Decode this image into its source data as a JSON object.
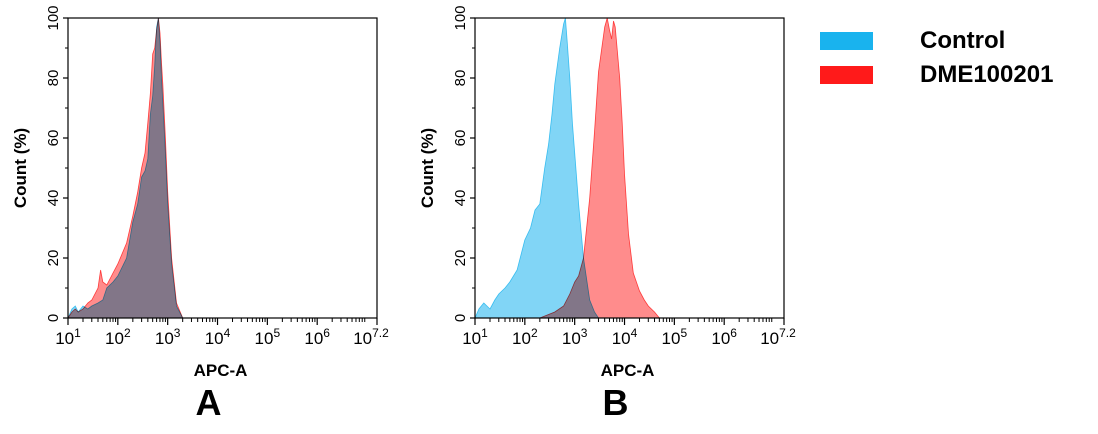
{
  "colors": {
    "control": "#19b3ee",
    "sample": "#ff1a1a",
    "overlap": "#7d8bad",
    "axis": "#000000"
  },
  "legend": {
    "placement": "top-right",
    "items": [
      {
        "label": "Control",
        "color": "#19b3ee"
      },
      {
        "label": "DME100201",
        "color": "#ff1a1a"
      }
    ]
  },
  "chart_data": [
    {
      "type": "area",
      "panel_label": "A",
      "xlabel": "APC-A",
      "ylabel": "Count  (%)",
      "xscale": "log",
      "xlim": [
        10,
        15848932
      ],
      "ylim": [
        0,
        100
      ],
      "x_ticks": [
        {
          "base": "10",
          "exp": "1"
        },
        {
          "base": "10",
          "exp": "2"
        },
        {
          "base": "10",
          "exp": "3"
        },
        {
          "base": "10",
          "exp": "4"
        },
        {
          "base": "10",
          "exp": "5"
        },
        {
          "base": "10",
          "exp": "6"
        },
        {
          "base": "10",
          "exp": "7.2"
        }
      ],
      "y_ticks": [
        "0",
        "20",
        "40",
        "60",
        "80",
        "100"
      ],
      "series": [
        {
          "name": "Control",
          "x": [
            10,
            12,
            14,
            16,
            20,
            25,
            30,
            40,
            50,
            60,
            80,
            100,
            150,
            200,
            250,
            300,
            350,
            400,
            450,
            500,
            550,
            600,
            650,
            700,
            750,
            800,
            900,
            1000,
            1200,
            1500,
            2000
          ],
          "y": [
            0,
            3,
            4,
            2,
            4,
            3,
            4,
            5,
            6,
            10,
            12,
            14,
            20,
            32,
            38,
            47,
            49,
            53,
            68,
            74,
            84,
            97,
            100,
            92,
            80,
            72,
            55,
            38,
            18,
            4,
            0
          ]
        },
        {
          "name": "DME100201",
          "x": [
            10,
            12,
            14,
            16,
            20,
            25,
            30,
            40,
            45,
            50,
            60,
            80,
            100,
            150,
            200,
            250,
            300,
            350,
            400,
            450,
            500,
            550,
            600,
            650,
            700,
            750,
            800,
            900,
            1000,
            1200,
            1500,
            2000
          ],
          "y": [
            0,
            2,
            3,
            2,
            3,
            5,
            6,
            10,
            16,
            12,
            11,
            15,
            18,
            25,
            34,
            42,
            50,
            55,
            65,
            75,
            88,
            90,
            96,
            100,
            95,
            85,
            78,
            60,
            42,
            20,
            5,
            0
          ]
        }
      ]
    },
    {
      "type": "area",
      "panel_label": "B",
      "xlabel": "APC-A",
      "ylabel": "Count  (%)",
      "xscale": "log",
      "xlim": [
        10,
        15848932
      ],
      "ylim": [
        0,
        100
      ],
      "x_ticks": [
        {
          "base": "10",
          "exp": "1"
        },
        {
          "base": "10",
          "exp": "2"
        },
        {
          "base": "10",
          "exp": "3"
        },
        {
          "base": "10",
          "exp": "4"
        },
        {
          "base": "10",
          "exp": "5"
        },
        {
          "base": "10",
          "exp": "6"
        },
        {
          "base": "10",
          "exp": "7.2"
        }
      ],
      "y_ticks": [
        "0",
        "20",
        "40",
        "60",
        "80",
        "100"
      ],
      "series": [
        {
          "name": "Control",
          "x": [
            10,
            12,
            15,
            20,
            25,
            30,
            40,
            50,
            70,
            100,
            130,
            160,
            200,
            250,
            300,
            350,
            400,
            500,
            600,
            650,
            700,
            800,
            900,
            1000,
            1200,
            1500,
            2000,
            2500,
            3000
          ],
          "y": [
            0,
            3,
            5,
            3,
            6,
            8,
            10,
            12,
            16,
            26,
            30,
            36,
            38,
            50,
            58,
            68,
            78,
            90,
            98,
            100,
            93,
            80,
            65,
            55,
            38,
            20,
            6,
            2,
            0
          ]
        },
        {
          "name": "DME100201",
          "x": [
            200,
            400,
            600,
            800,
            1000,
            1200,
            1500,
            2000,
            2500,
            3000,
            3500,
            4000,
            4500,
            5000,
            5500,
            6000,
            6500,
            7000,
            8000,
            9000,
            10000,
            12000,
            15000,
            20000,
            25000,
            30000,
            40000,
            50000
          ],
          "y": [
            0,
            2,
            4,
            8,
            12,
            14,
            20,
            40,
            62,
            82,
            90,
            97,
            100,
            96,
            93,
            99,
            97,
            91,
            80,
            65,
            48,
            28,
            15,
            9,
            6,
            4,
            2,
            0
          ]
        }
      ]
    }
  ]
}
